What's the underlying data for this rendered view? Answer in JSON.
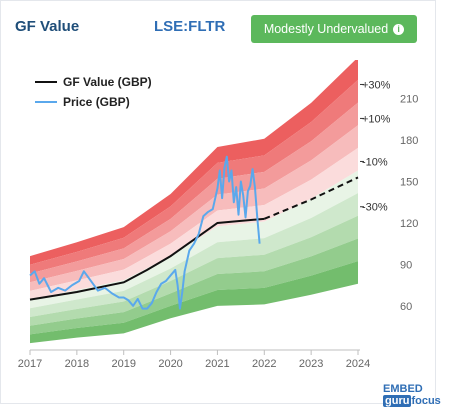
{
  "header": {
    "title": "GF Value",
    "ticker": "LSE:FLTR",
    "badge_label": "Modestly Undervalued",
    "badge_color": "#5cb85c",
    "badge_icon": "info-icon"
  },
  "brand": {
    "text_pre": "EMBED",
    "text_guru": "guru",
    "text_focus": "focus"
  },
  "chart_data": {
    "type": "line",
    "title": "",
    "xlabel": "",
    "ylabel": "",
    "x_ticks": [
      2017,
      2018,
      2019,
      2020,
      2021,
      2022,
      2023,
      2024
    ],
    "y_ticks": [
      60,
      90,
      120,
      150,
      180,
      210
    ],
    "xlim": [
      2017,
      2024
    ],
    "ylim": [
      28,
      225
    ],
    "grid": false,
    "legend_position": "top-left",
    "legend": [
      {
        "name": "GF Value (GBP)",
        "color": "#111111"
      },
      {
        "name": "Price (GBP)",
        "color": "#5aa8ec"
      }
    ],
    "band_labels": [
      "+30%",
      "+10%",
      "-10%",
      "-30%"
    ],
    "gf_value": {
      "name": "GF Value (GBP)",
      "x": [
        2017.0,
        2018.0,
        2019.0,
        2019.5,
        2020.0,
        2020.5,
        2021.0,
        2021.5,
        2022.0
      ],
      "y": [
        64.5,
        70.0,
        77.0,
        86.0,
        96.0,
        108.0,
        120.0,
        121.5,
        123.0
      ]
    },
    "gf_value_projection": {
      "x": [
        2022.0,
        2023.0,
        2024.0
      ],
      "y": [
        123.0,
        137.0,
        153.0
      ]
    },
    "price": {
      "name": "Price (GBP)",
      "x": [
        2017.0,
        2017.1,
        2017.2,
        2017.3,
        2017.45,
        2017.6,
        2017.75,
        2017.9,
        2018.05,
        2018.15,
        2018.3,
        2018.45,
        2018.6,
        2018.75,
        2018.9,
        2019.0,
        2019.1,
        2019.2,
        2019.3,
        2019.4,
        2019.5,
        2019.6,
        2019.7,
        2019.8,
        2019.9,
        2020.0,
        2020.1,
        2020.15,
        2020.2,
        2020.25,
        2020.3,
        2020.4,
        2020.5,
        2020.6,
        2020.7,
        2020.8,
        2020.9,
        2021.0,
        2021.05,
        2021.1,
        2021.15,
        2021.2,
        2021.25,
        2021.3,
        2021.35,
        2021.4,
        2021.45,
        2021.5,
        2021.55,
        2021.6,
        2021.65,
        2021.7,
        2021.75,
        2021.8,
        2021.85,
        2021.9
      ],
      "y": [
        82,
        85,
        76,
        80,
        70,
        73,
        71,
        75,
        78,
        85,
        78,
        71,
        73,
        69,
        66,
        66,
        64,
        60,
        65,
        58,
        58,
        62,
        70,
        76,
        78,
        82,
        86,
        75,
        58,
        70,
        85,
        100,
        105,
        112,
        125,
        128,
        130,
        145,
        158,
        138,
        160,
        168,
        150,
        158,
        135,
        146,
        126,
        150,
        140,
        124,
        143,
        147,
        159,
        146,
        124,
        105
      ]
    },
    "bands_upper_edges": {
      "x": [
        2017.0,
        2018.0,
        2019.0,
        2020.0,
        2021.0,
        2022.0,
        2023.0,
        2024.0
      ],
      "top": [
        96,
        106,
        117,
        141,
        175,
        181,
        207,
        240
      ]
    },
    "bands_lower_edges": {
      "x": [
        2017.0,
        2018.0,
        2019.0,
        2020.0,
        2021.0,
        2022.0,
        2023.0,
        2024.0
      ],
      "bottom": [
        33,
        37,
        40,
        51,
        60,
        61,
        68,
        76
      ]
    }
  }
}
